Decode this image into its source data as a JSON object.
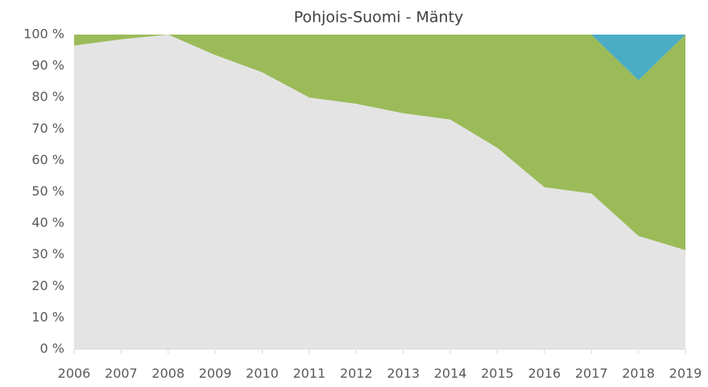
{
  "chart_data": {
    "type": "stacked_area_100",
    "title": "Pohjois-Suomi - Mänty",
    "categories": [
      "2006",
      "2007",
      "2008",
      "2009",
      "2010",
      "2011",
      "2012",
      "2013",
      "2014",
      "2015",
      "2016",
      "2017",
      "2018",
      "2019"
    ],
    "series": [
      {
        "color": "#e4e4e4",
        "values": [
          96.5,
          98.5,
          100,
          93.5,
          88,
          80,
          78,
          75,
          73,
          64,
          51.5,
          49.5,
          36,
          31.5
        ]
      },
      {
        "color": "#9bbb59",
        "values": [
          3.5,
          1.5,
          0,
          6.5,
          12,
          20,
          22,
          25,
          27,
          36,
          48.5,
          50.5,
          49.5,
          68.5
        ]
      },
      {
        "color": "#4bacc6",
        "values": [
          0,
          0,
          0,
          0,
          0,
          0,
          0,
          0,
          0,
          0,
          0,
          0,
          14.5,
          0
        ]
      }
    ],
    "ylim": [
      0,
      100
    ],
    "yticks": [
      {
        "value": 0,
        "label": "0 %"
      },
      {
        "value": 10,
        "label": "10 %"
      },
      {
        "value": 20,
        "label": "20 %"
      },
      {
        "value": 30,
        "label": "30 %"
      },
      {
        "value": 40,
        "label": "40 %"
      },
      {
        "value": 50,
        "label": "50 %"
      },
      {
        "value": 60,
        "label": "60 %"
      },
      {
        "value": 70,
        "label": "70 %"
      },
      {
        "value": 80,
        "label": "80 %"
      },
      {
        "value": 90,
        "label": "90 %"
      },
      {
        "value": 100,
        "label": "100 %"
      }
    ]
  }
}
